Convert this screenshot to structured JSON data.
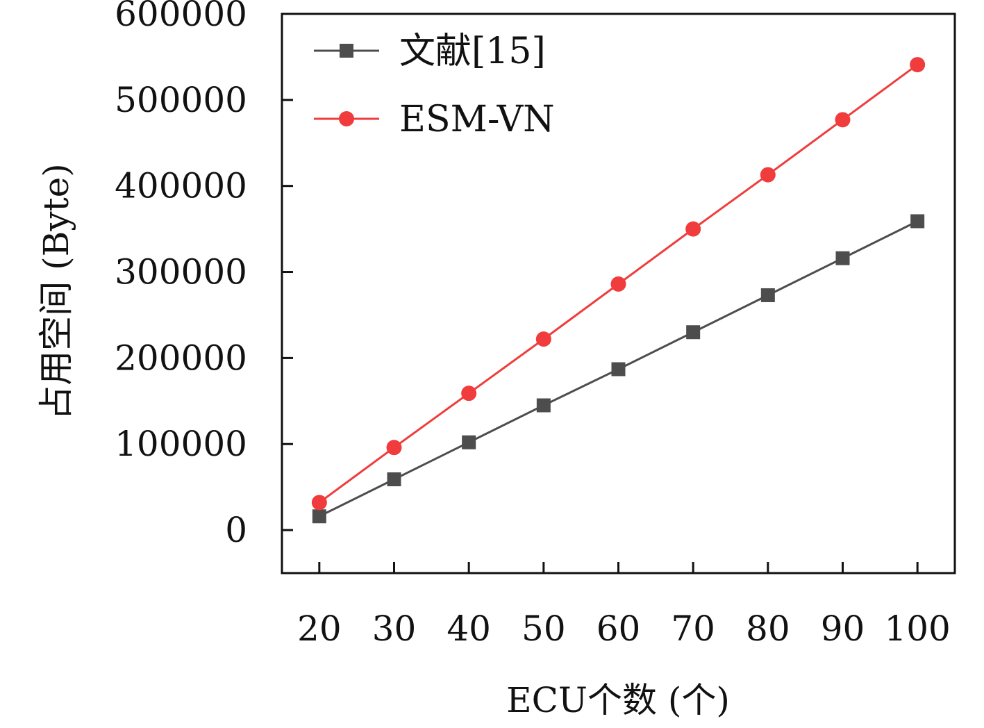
{
  "chart_data": {
    "type": "line",
    "title": "",
    "xlabel": "ECU个数 (个)",
    "ylabel": "占用空间 (Byte)",
    "x": [
      20,
      30,
      40,
      50,
      60,
      70,
      80,
      90,
      100
    ],
    "xticks": [
      "20",
      "30",
      "40",
      "50",
      "60",
      "70",
      "80",
      "90",
      "100"
    ],
    "xlim": [
      15,
      105
    ],
    "ylim": [
      -50000,
      600000
    ],
    "yticks": [
      0,
      100000,
      200000,
      300000,
      400000,
      500000,
      600000
    ],
    "ytick_labels": [
      "0",
      "100000",
      "200000",
      "300000",
      "400000",
      "500000",
      "600000"
    ],
    "grid": false,
    "legend_position": "top-left",
    "series": [
      {
        "name": "文献[15]",
        "color": "#4d4d4d",
        "marker": "square",
        "values": [
          16000,
          59000,
          102000,
          145000,
          187000,
          230000,
          273000,
          316000,
          359000
        ]
      },
      {
        "name": "ESM-VN",
        "color": "#f03c3c",
        "marker": "circle",
        "values": [
          32000,
          96000,
          159000,
          222000,
          286000,
          350000,
          413000,
          477000,
          541000
        ]
      }
    ]
  }
}
